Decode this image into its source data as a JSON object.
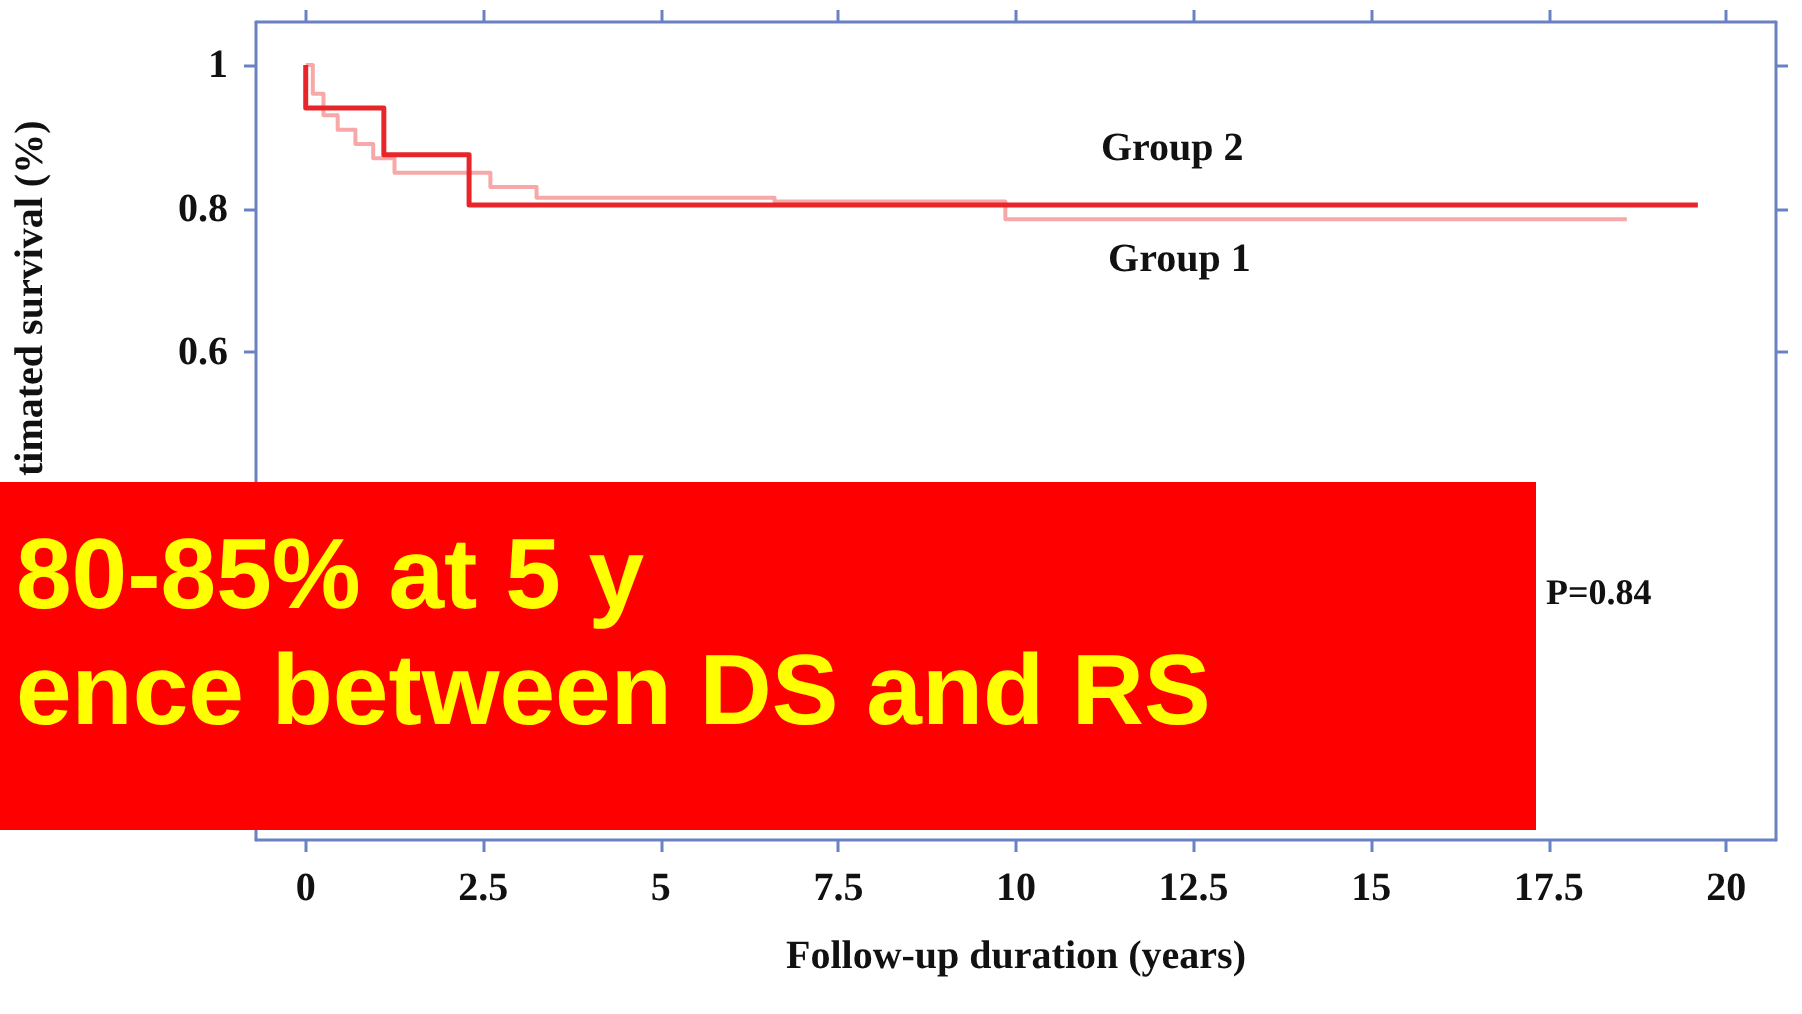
{
  "chart_data": {
    "type": "step",
    "xlabel": "Follow-up duration (years)",
    "ylabel": "timated survival (%)",
    "xlim": [
      -0.7,
      20.7
    ],
    "xticks": [
      0,
      2.5,
      5,
      7.5,
      10,
      12.5,
      15,
      17.5,
      20
    ],
    "ylim": [
      -0.08,
      1.06
    ],
    "yticks": [
      0.6,
      0.8,
      1
    ],
    "series": [
      {
        "name": "Group 1",
        "color": "#f7a8a8",
        "x": [
          0,
          0.1,
          0.25,
          0.45,
          0.7,
          0.95,
          1.25,
          2.6,
          3.25,
          6.6,
          9.85,
          18.6
        ],
        "values": [
          1,
          0.96,
          0.93,
          0.91,
          0.89,
          0.87,
          0.85,
          0.83,
          0.815,
          0.81,
          0.785,
          0.785
        ]
      },
      {
        "name": "Group 2",
        "color": "#e8262a",
        "x": [
          0,
          0,
          1.1,
          2.3,
          19.6
        ],
        "values": [
          1,
          0.94,
          0.875,
          0.805,
          0.805
        ]
      }
    ],
    "annotations": [
      "80-85% at 5 y",
      "ence between DS and RS",
      "P=0.84"
    ],
    "grid": false,
    "legend": false
  }
}
